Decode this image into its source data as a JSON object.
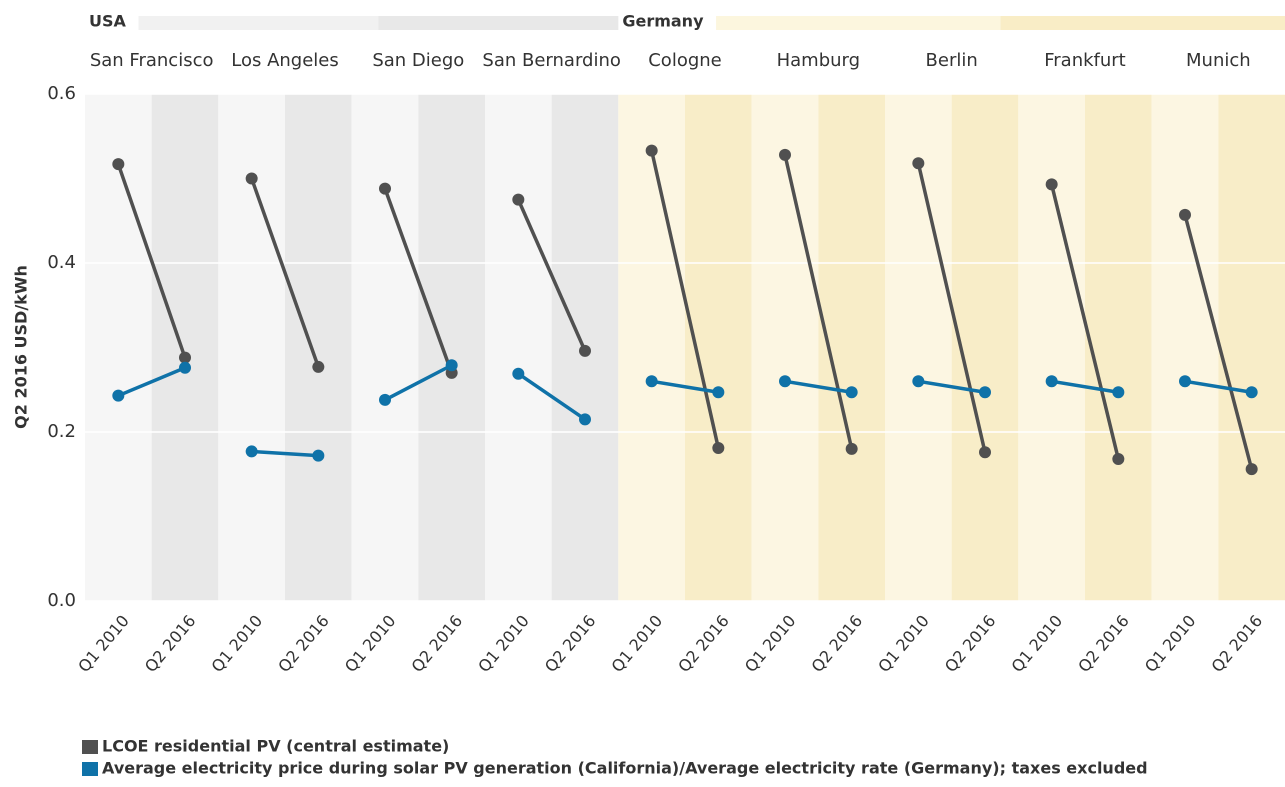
{
  "chart_data": {
    "type": "slope",
    "y_label": "Q2 2016 USD/kWh",
    "periods": [
      "Q1 2010",
      "Q2 2016"
    ],
    "groups": [
      {
        "name": "USA",
        "header_colors": [
          "#f1f1f1",
          "#e8e8e8"
        ],
        "band_colors": [
          "#f6f6f6",
          "#e8e8e8"
        ],
        "cities": [
          "San Francisco",
          "Los Angeles",
          "San Diego",
          "San Bernardino"
        ]
      },
      {
        "name": "Germany",
        "header_colors": [
          "#fcf6de",
          "#f9edc6"
        ],
        "band_colors": [
          "#fcf6e2",
          "#f8edc8"
        ],
        "cities": [
          "Cologne",
          "Hamburg",
          "Berlin",
          "Frankfurt",
          "Munich"
        ]
      }
    ],
    "series": [
      {
        "name": "LCOE residential PV (central estimate)",
        "color": "#505050",
        "values": [
          [
            0.517,
            0.288
          ],
          [
            0.5,
            0.277
          ],
          [
            0.488,
            0.27
          ],
          [
            0.475,
            0.296
          ],
          [
            0.533,
            0.181
          ],
          [
            0.528,
            0.18
          ],
          [
            0.518,
            0.176
          ],
          [
            0.493,
            0.168
          ],
          [
            0.457,
            0.156
          ]
        ]
      },
      {
        "name": "Average electricity price during solar PV generation (California)/Average electricity rate (Germany); taxes excluded",
        "color": "#0f72a8",
        "values": [
          [
            0.243,
            0.276
          ],
          [
            0.177,
            0.172
          ],
          [
            0.238,
            0.279
          ],
          [
            0.269,
            0.215
          ],
          [
            0.26,
            0.247
          ],
          [
            0.26,
            0.247
          ],
          [
            0.26,
            0.247
          ],
          [
            0.26,
            0.247
          ],
          [
            0.26,
            0.247
          ]
        ]
      }
    ],
    "ylim": [
      0,
      0.6
    ],
    "yticks": [
      {
        "value": 0,
        "label": "0.0"
      },
      {
        "value": 0.2,
        "label": "0.2"
      },
      {
        "value": 0.4,
        "label": "0.4"
      },
      {
        "value": 0.6,
        "label": "0.6"
      }
    ],
    "grid": true
  }
}
